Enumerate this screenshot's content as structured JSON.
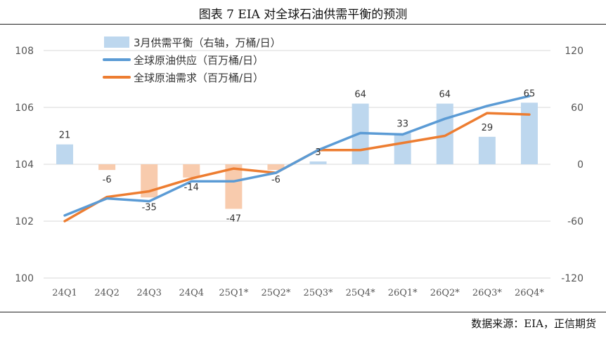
{
  "header": {
    "title": "图表 7   EIA 对全球石油供需平衡的预测"
  },
  "footer": {
    "source": "数据来源：EIA，正信期货"
  },
  "chart_data": {
    "type": "bar+line",
    "categories": [
      "24Q1",
      "24Q2",
      "24Q3",
      "24Q4",
      "25Q1*",
      "25Q2*",
      "25Q3*",
      "25Q4*",
      "26Q1*",
      "26Q2*",
      "26Q3*",
      "26Q4*"
    ],
    "left_axis": {
      "ylim": [
        100,
        108
      ],
      "ticks": [
        100,
        102,
        104,
        106,
        108
      ]
    },
    "right_axis": {
      "ylim": [
        -120,
        120
      ],
      "ticks": [
        -120,
        -60,
        0,
        60,
        120
      ]
    },
    "grid": true,
    "legend_position": "top-left",
    "series": [
      {
        "name": "3月供需平衡（右轴，万桶/日）",
        "type": "bar",
        "axis": "right",
        "values": [
          21,
          -6,
          -35,
          -14,
          -47,
          -6,
          3,
          64,
          33,
          64,
          29,
          65
        ],
        "color_positive": "#bdd7ee",
        "color_negative": "#f8cbad"
      },
      {
        "name": "全球原油供应（百万桶/日）",
        "type": "line",
        "axis": "left",
        "values": [
          102.2,
          102.8,
          102.7,
          103.4,
          103.4,
          103.7,
          104.5,
          105.1,
          105.05,
          105.6,
          106.05,
          106.4
        ],
        "color": "#5b9bd5"
      },
      {
        "name": "全球原油需求（百万桶/日）",
        "type": "line",
        "axis": "left",
        "values": [
          102.0,
          102.85,
          103.05,
          103.5,
          103.85,
          103.7,
          104.5,
          104.5,
          104.75,
          105.0,
          105.8,
          105.75
        ],
        "color": "#ed7d31"
      }
    ]
  }
}
